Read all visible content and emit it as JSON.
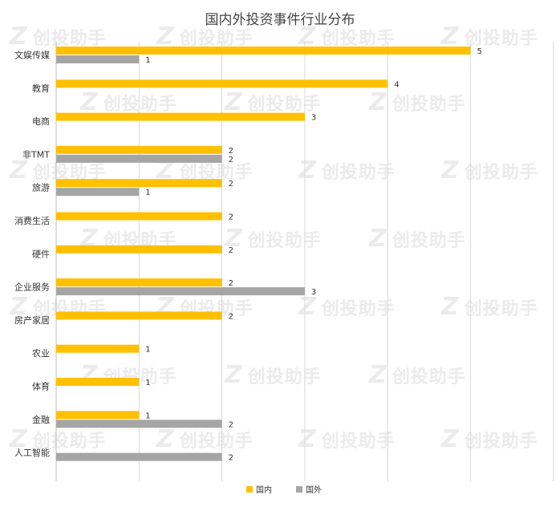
{
  "chart_data": {
    "type": "bar",
    "orientation": "horizontal",
    "title": "国内外投资事件行业分布",
    "categories": [
      "文娱传媒",
      "教育",
      "电商",
      "非TMT",
      "旅游",
      "消费生活",
      "硬件",
      "企业服务",
      "房产家居",
      "农业",
      "体育",
      "金融",
      "人工智能"
    ],
    "series": [
      {
        "name": "国内",
        "color": "#ffc000",
        "values": [
          5,
          4,
          3,
          2,
          2,
          2,
          2,
          2,
          2,
          1,
          1,
          1,
          null
        ]
      },
      {
        "name": "国外",
        "color": "#a5a5a5",
        "values": [
          1,
          null,
          null,
          2,
          1,
          null,
          null,
          3,
          null,
          null,
          null,
          2,
          2
        ]
      }
    ],
    "xlim": [
      0,
      6
    ],
    "grid": true,
    "legend_position": "bottom",
    "data_labels": true
  },
  "watermark": {
    "mark": "Z",
    "text": "创投助手"
  }
}
